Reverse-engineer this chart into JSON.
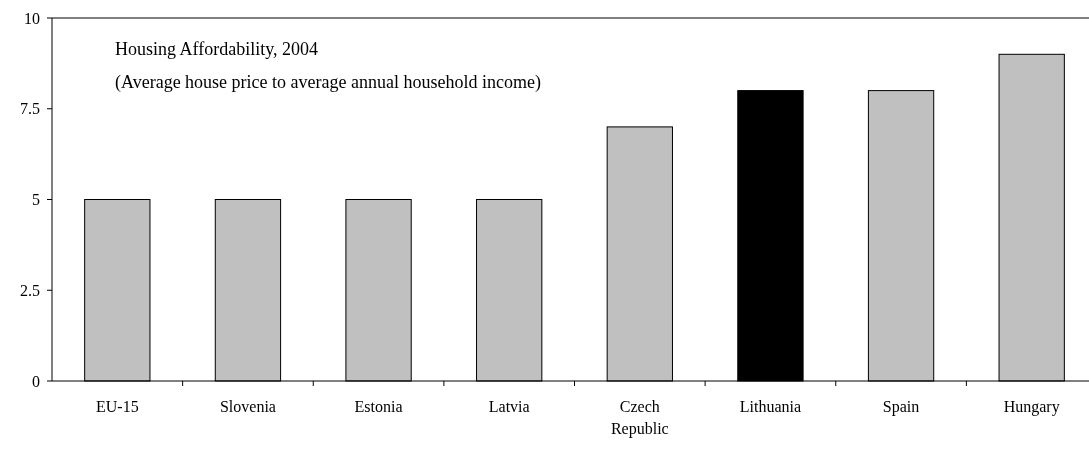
{
  "chart_data": {
    "type": "bar",
    "title": "Housing Affordability, 2004",
    "subtitle": "(Average house price to average annual household income)",
    "categories": [
      "EU-15",
      "Slovenia",
      "Estonia",
      "Latvia",
      "Czech Republic",
      "Lithuania",
      "Spain",
      "Hungary"
    ],
    "values": [
      5,
      5,
      5,
      5,
      7,
      8,
      8,
      9
    ],
    "colors": [
      "#c0c0c0",
      "#c0c0c0",
      "#c0c0c0",
      "#c0c0c0",
      "#c0c0c0",
      "#000000",
      "#c0c0c0",
      "#c0c0c0"
    ],
    "ylim": [
      0,
      10
    ],
    "yticks": [
      0,
      {
        "value": 2.5,
        "label": "2.5"
      },
      5,
      {
        "value": 7.5,
        "label": "7.5"
      },
      10
    ],
    "grid": false
  }
}
